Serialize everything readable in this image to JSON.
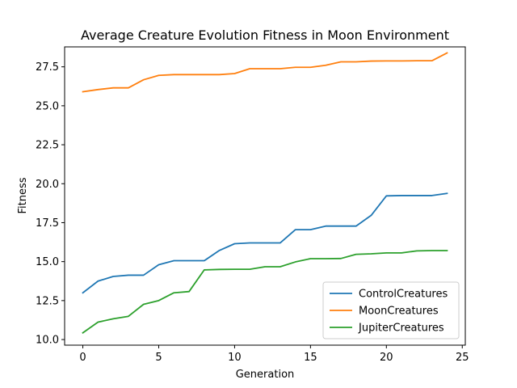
{
  "chart_data": {
    "type": "line",
    "title": "Average Creature Evolution Fitness in Moon Environment",
    "xlabel": "Generation",
    "ylabel": "Fitness",
    "xlim": [
      -1.2,
      25.2
    ],
    "ylim": [
      9.64,
      28.78
    ],
    "xticks": [
      0,
      5,
      10,
      15,
      20,
      25
    ],
    "yticks": [
      10.0,
      12.5,
      15.0,
      17.5,
      20.0,
      22.5,
      25.0,
      27.5
    ],
    "grid": false,
    "legend_position": "lower-right",
    "x": [
      0,
      1,
      2,
      3,
      4,
      5,
      6,
      7,
      8,
      9,
      10,
      11,
      12,
      13,
      14,
      15,
      16,
      17,
      18,
      19,
      20,
      21,
      22,
      23,
      24
    ],
    "series": [
      {
        "name": "ControlCreatures",
        "color": "#1f77b4",
        "values": [
          13.0,
          13.75,
          14.05,
          14.13,
          14.13,
          14.8,
          15.06,
          15.06,
          15.06,
          15.72,
          16.15,
          16.2,
          16.2,
          16.2,
          17.05,
          17.05,
          17.28,
          17.28,
          17.28,
          17.97,
          19.22,
          19.24,
          19.24,
          19.24,
          19.38
        ]
      },
      {
        "name": "MoonCreatures",
        "color": "#ff7f0e",
        "values": [
          25.9,
          26.04,
          26.15,
          26.15,
          26.67,
          26.95,
          27.0,
          27.0,
          27.0,
          27.0,
          27.07,
          27.38,
          27.38,
          27.38,
          27.47,
          27.47,
          27.6,
          27.82,
          27.82,
          27.87,
          27.88,
          27.88,
          27.89,
          27.89,
          28.39
        ]
      },
      {
        "name": "JupiterCreatures",
        "color": "#2ca02c",
        "values": [
          10.43,
          11.12,
          11.33,
          11.49,
          12.26,
          12.5,
          13.0,
          13.08,
          14.47,
          14.5,
          14.51,
          14.51,
          14.67,
          14.67,
          14.98,
          15.19,
          15.19,
          15.2,
          15.47,
          15.5,
          15.56,
          15.56,
          15.69,
          15.71,
          15.71
        ]
      }
    ]
  }
}
